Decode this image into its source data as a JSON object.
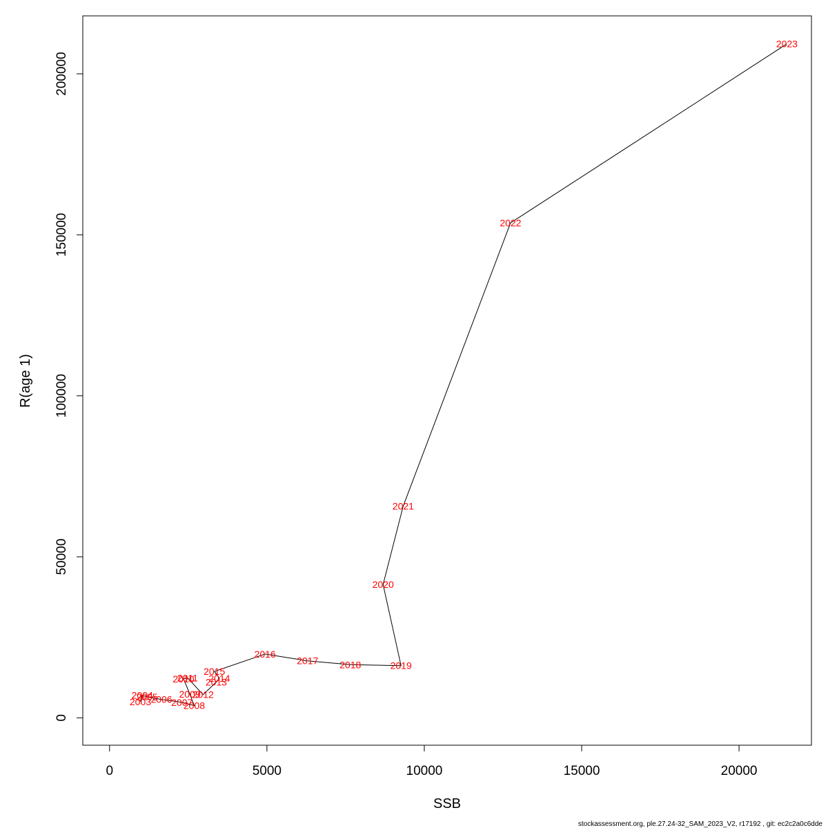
{
  "chart_data": {
    "type": "line",
    "xlabel": "SSB",
    "ylabel": "R(age 1)",
    "xlim": [
      -850,
      22300
    ],
    "ylim": [
      -8500,
      218000
    ],
    "x_ticks": [
      0,
      5000,
      10000,
      15000,
      20000
    ],
    "y_ticks": [
      0,
      50000,
      100000,
      150000,
      200000
    ],
    "grid": false,
    "line_color": "#000000",
    "label_color": "#ff0000",
    "points": [
      {
        "label": "2003",
        "x": 980,
        "y": 5000
      },
      {
        "label": "2004",
        "x": 1040,
        "y": 7000
      },
      {
        "label": "2005",
        "x": 1190,
        "y": 6500
      },
      {
        "label": "2006",
        "x": 1650,
        "y": 5700
      },
      {
        "label": "2007",
        "x": 2300,
        "y": 4800
      },
      {
        "label": "2008",
        "x": 2690,
        "y": 3800
      },
      {
        "label": "2009",
        "x": 2550,
        "y": 7400
      },
      {
        "label": "2010",
        "x": 2350,
        "y": 12100
      },
      {
        "label": "2011",
        "x": 2480,
        "y": 12400
      },
      {
        "label": "2012",
        "x": 2970,
        "y": 7200
      },
      {
        "label": "2013",
        "x": 3390,
        "y": 11100
      },
      {
        "label": "2014",
        "x": 3490,
        "y": 12300
      },
      {
        "label": "2015",
        "x": 3330,
        "y": 14400
      },
      {
        "label": "2016",
        "x": 4940,
        "y": 19800
      },
      {
        "label": "2017",
        "x": 6290,
        "y": 17700
      },
      {
        "label": "2018",
        "x": 7650,
        "y": 16500
      },
      {
        "label": "2019",
        "x": 9260,
        "y": 16200
      },
      {
        "label": "2020",
        "x": 8690,
        "y": 41400
      },
      {
        "label": "2021",
        "x": 9330,
        "y": 65800
      },
      {
        "label": "2022",
        "x": 12740,
        "y": 153700
      },
      {
        "label": "2023",
        "x": 21520,
        "y": 209300
      }
    ]
  },
  "footer": "stockassessment.org, ple.27.24-32_SAM_2023_V2, r17192 , git: ec2c2a0c6dde"
}
